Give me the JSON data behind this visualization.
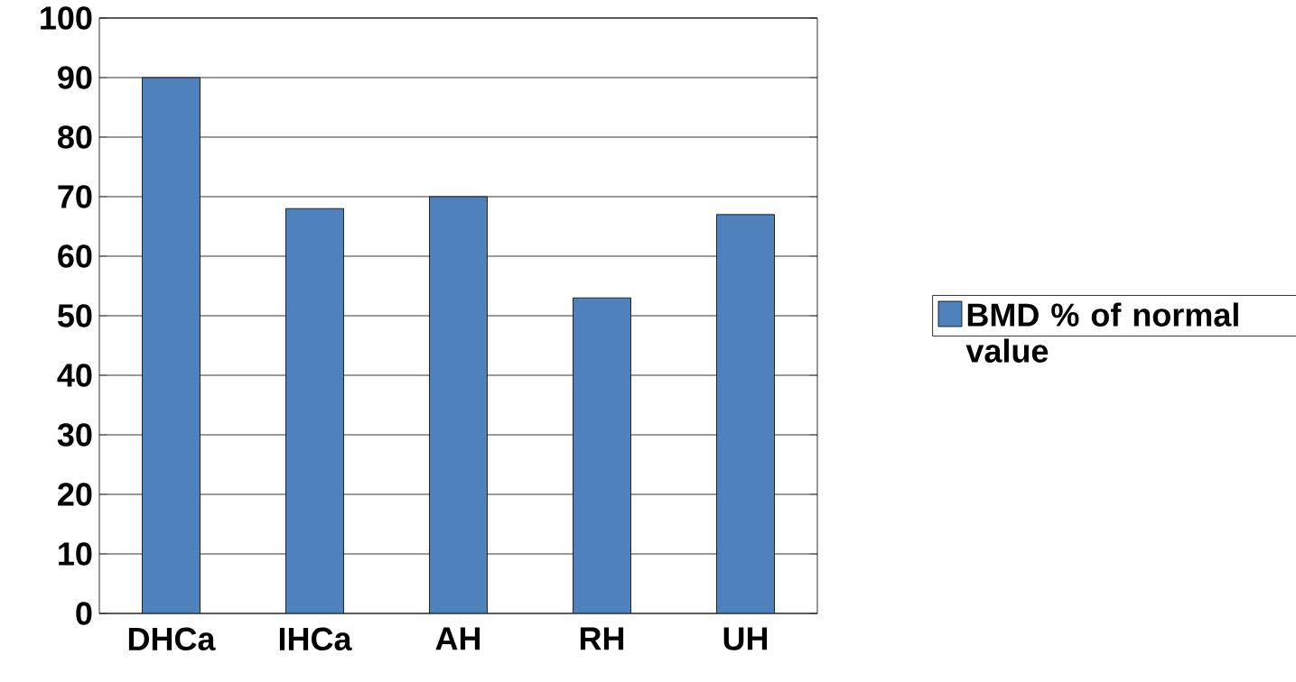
{
  "chart_data": {
    "type": "bar",
    "categories": [
      "DHCa",
      "IHCa",
      "AH",
      "RH",
      "UH"
    ],
    "series": [
      {
        "name": "BMD % of normal value",
        "color": "#4f81bd",
        "values": [
          90,
          68,
          70,
          53,
          67
        ]
      }
    ],
    "ylim": [
      0,
      100
    ],
    "yticks": [
      0,
      10,
      20,
      30,
      40,
      50,
      60,
      70,
      80,
      90,
      100
    ],
    "grid": "y",
    "legend": "right"
  }
}
